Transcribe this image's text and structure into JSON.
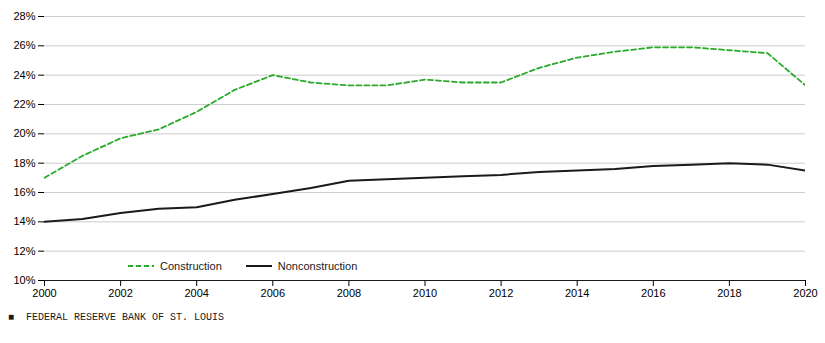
{
  "chart_data": {
    "type": "line",
    "x": [
      2000,
      2001,
      2002,
      2003,
      2004,
      2005,
      2006,
      2007,
      2008,
      2009,
      2010,
      2011,
      2012,
      2013,
      2014,
      2015,
      2016,
      2017,
      2018,
      2019,
      2020
    ],
    "series": [
      {
        "name": "Construction",
        "color": "#2aaa2a",
        "line_style": "dashed",
        "values": [
          17.0,
          18.5,
          19.7,
          20.3,
          21.5,
          23.0,
          24.0,
          23.5,
          23.3,
          23.3,
          23.7,
          23.5,
          23.5,
          24.5,
          25.2,
          25.6,
          25.9,
          25.9,
          25.7,
          25.5,
          23.3
        ]
      },
      {
        "name": "Nonconstruction",
        "color": "#1a1a1a",
        "line_style": "solid",
        "values": [
          14.0,
          14.2,
          14.6,
          14.9,
          15.0,
          15.5,
          15.9,
          16.3,
          16.8,
          16.9,
          17.0,
          17.1,
          17.2,
          17.4,
          17.5,
          17.6,
          17.8,
          17.9,
          18.0,
          17.9,
          17.5
        ]
      }
    ],
    "xlim": [
      2000,
      2020
    ],
    "xticks": [
      2000,
      2002,
      2004,
      2006,
      2008,
      2010,
      2012,
      2014,
      2016,
      2018,
      2020
    ],
    "ylim": [
      10,
      28
    ],
    "yticks": [
      {
        "value": 10,
        "label": "10%"
      },
      {
        "value": 12,
        "label": "12%"
      },
      {
        "value": 14,
        "label": "14%"
      },
      {
        "value": 16,
        "label": "16%"
      },
      {
        "value": 18,
        "label": "18%"
      },
      {
        "value": 20,
        "label": "20%"
      },
      {
        "value": 22,
        "label": "22%"
      },
      {
        "value": 24,
        "label": "24%"
      },
      {
        "value": 26,
        "label": "26%"
      },
      {
        "value": 28,
        "label": "28%"
      }
    ],
    "grid": "y",
    "legend": "lower left",
    "annotations": [
      "■  FEDERAL RESERVE BANK OF ST. LOUIS"
    ]
  }
}
